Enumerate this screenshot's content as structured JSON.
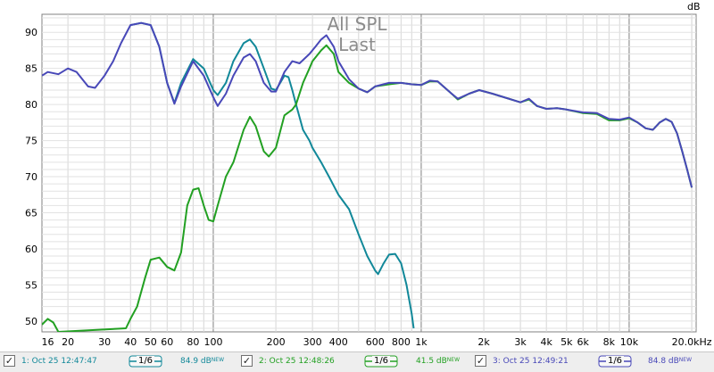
{
  "chart_data": {
    "type": "line",
    "title": "All SPL",
    "subtitle": "Last",
    "ylabel": "dB",
    "xscale": "log",
    "xlim": [
      15,
      21000
    ],
    "ylim": [
      48.5,
      92.5
    ],
    "yticks": [
      50,
      55,
      60,
      65,
      70,
      75,
      80,
      85,
      90
    ],
    "xtick_labels": [
      {
        "v": 16,
        "t": "16"
      },
      {
        "v": 20,
        "t": "20"
      },
      {
        "v": 30,
        "t": "30"
      },
      {
        "v": 40,
        "t": "40"
      },
      {
        "v": 50,
        "t": "50"
      },
      {
        "v": 60,
        "t": "60"
      },
      {
        "v": 80,
        "t": "80"
      },
      {
        "v": 100,
        "t": "100"
      },
      {
        "v": 200,
        "t": "200"
      },
      {
        "v": 300,
        "t": "300"
      },
      {
        "v": 400,
        "t": "400"
      },
      {
        "v": 600,
        "t": "600"
      },
      {
        "v": 800,
        "t": "800"
      },
      {
        "v": 1000,
        "t": "1k"
      },
      {
        "v": 2000,
        "t": "2k"
      },
      {
        "v": 3000,
        "t": "3k"
      },
      {
        "v": 4000,
        "t": "4k"
      },
      {
        "v": 5000,
        "t": "5k"
      },
      {
        "v": 6000,
        "t": "6k"
      },
      {
        "v": 8000,
        "t": "8k"
      },
      {
        "v": 10000,
        "t": "10k"
      },
      {
        "v": 20000,
        "t": "20.0kHz"
      }
    ],
    "grid": true,
    "series": [
      {
        "color": "#118899",
        "points": [
          [
            40,
            91.0
          ],
          [
            45,
            91.3
          ],
          [
            50,
            91.0
          ],
          [
            55,
            88
          ],
          [
            60,
            83
          ],
          [
            65,
            80.2
          ],
          [
            70,
            83
          ],
          [
            80,
            86.3
          ],
          [
            90,
            85
          ],
          [
            100,
            82
          ],
          [
            105,
            81.3
          ],
          [
            115,
            83
          ],
          [
            125,
            86
          ],
          [
            140,
            88.5
          ],
          [
            150,
            89
          ],
          [
            160,
            88
          ],
          [
            175,
            85
          ],
          [
            190,
            82.2
          ],
          [
            200,
            82
          ],
          [
            210,
            83
          ],
          [
            220,
            84
          ],
          [
            230,
            83.8
          ],
          [
            240,
            82
          ],
          [
            250,
            80
          ],
          [
            270,
            76.5
          ],
          [
            290,
            75
          ],
          [
            300,
            74
          ],
          [
            330,
            72
          ],
          [
            360,
            70
          ],
          [
            400,
            67.5
          ],
          [
            450,
            65.5
          ],
          [
            500,
            62
          ],
          [
            550,
            59
          ],
          [
            600,
            57
          ],
          [
            620,
            56.5
          ],
          [
            660,
            58
          ],
          [
            700,
            59.2
          ],
          [
            750,
            59.3
          ],
          [
            800,
            58
          ],
          [
            850,
            55
          ],
          [
            900,
            51
          ],
          [
            920,
            49
          ]
        ]
      },
      {
        "color": "#22a022",
        "points": [
          [
            15,
            49.5
          ],
          [
            16,
            50.3
          ],
          [
            17,
            49.8
          ],
          [
            18,
            48.5
          ],
          [
            38,
            49
          ],
          [
            40,
            50.3
          ],
          [
            43,
            52
          ],
          [
            47,
            56
          ],
          [
            50,
            58.5
          ],
          [
            55,
            58.8
          ],
          [
            60,
            57.5
          ],
          [
            65,
            57
          ],
          [
            70,
            59.5
          ],
          [
            75,
            66
          ],
          [
            80,
            68.2
          ],
          [
            85,
            68.4
          ],
          [
            90,
            66
          ],
          [
            95,
            64
          ],
          [
            100,
            63.8
          ],
          [
            105,
            66
          ],
          [
            115,
            70
          ],
          [
            125,
            72
          ],
          [
            140,
            76.5
          ],
          [
            150,
            78.3
          ],
          [
            160,
            77
          ],
          [
            175,
            73.5
          ],
          [
            185,
            72.8
          ],
          [
            200,
            74
          ],
          [
            220,
            78.5
          ],
          [
            240,
            79.3
          ],
          [
            250,
            80
          ],
          [
            270,
            83
          ],
          [
            290,
            85
          ],
          [
            300,
            86
          ],
          [
            330,
            87.5
          ],
          [
            350,
            88.2
          ],
          [
            380,
            87
          ],
          [
            400,
            84.5
          ],
          [
            450,
            83
          ],
          [
            500,
            82.2
          ],
          [
            550,
            81.7
          ],
          [
            600,
            82.5
          ],
          [
            700,
            82.8
          ],
          [
            800,
            83
          ],
          [
            900,
            82.8
          ],
          [
            1000,
            82.7
          ],
          [
            1100,
            83.2
          ],
          [
            1200,
            83.2
          ],
          [
            1400,
            81.5
          ],
          [
            1500,
            80.7
          ],
          [
            1700,
            81.5
          ],
          [
            1900,
            82
          ],
          [
            2200,
            81.5
          ],
          [
            2500,
            81
          ],
          [
            3000,
            80.3
          ],
          [
            3300,
            80.7
          ],
          [
            3600,
            79.8
          ],
          [
            4000,
            79.4
          ],
          [
            4500,
            79.5
          ],
          [
            5000,
            79.3
          ],
          [
            6000,
            78.8
          ],
          [
            7000,
            78.7
          ],
          [
            8000,
            77.8
          ],
          [
            9000,
            77.8
          ],
          [
            10000,
            78.1
          ],
          [
            11000,
            77.5
          ],
          [
            12000,
            76.7
          ],
          [
            13000,
            76.5
          ],
          [
            14000,
            77.5
          ],
          [
            15000,
            78
          ],
          [
            16000,
            77.6
          ],
          [
            17000,
            76
          ],
          [
            18000,
            73.5
          ],
          [
            19000,
            71
          ],
          [
            20000,
            68.5
          ]
        ]
      },
      {
        "color": "#4848b8",
        "points": [
          [
            15,
            84
          ],
          [
            16,
            84.5
          ],
          [
            18,
            84.2
          ],
          [
            20,
            85
          ],
          [
            22,
            84.5
          ],
          [
            25,
            82.5
          ],
          [
            27,
            82.3
          ],
          [
            30,
            84
          ],
          [
            33,
            86
          ],
          [
            36,
            88.5
          ],
          [
            40,
            91.0
          ],
          [
            45,
            91.3
          ],
          [
            50,
            91.0
          ],
          [
            55,
            88
          ],
          [
            60,
            83
          ],
          [
            65,
            80.1
          ],
          [
            70,
            82.5
          ],
          [
            80,
            86
          ],
          [
            90,
            84
          ],
          [
            100,
            81
          ],
          [
            105,
            79.8
          ],
          [
            115,
            81.5
          ],
          [
            125,
            84
          ],
          [
            140,
            86.5
          ],
          [
            150,
            87
          ],
          [
            160,
            86
          ],
          [
            175,
            83
          ],
          [
            190,
            81.8
          ],
          [
            200,
            81.8
          ],
          [
            220,
            84.5
          ],
          [
            240,
            86
          ],
          [
            260,
            85.7
          ],
          [
            290,
            87
          ],
          [
            310,
            88
          ],
          [
            330,
            89
          ],
          [
            350,
            89.6
          ],
          [
            380,
            88
          ],
          [
            400,
            86
          ],
          [
            450,
            83.5
          ],
          [
            500,
            82.2
          ],
          [
            550,
            81.7
          ],
          [
            600,
            82.5
          ],
          [
            700,
            83
          ],
          [
            800,
            83
          ],
          [
            900,
            82.8
          ],
          [
            1000,
            82.7
          ],
          [
            1100,
            83.3
          ],
          [
            1200,
            83.2
          ],
          [
            1400,
            81.5
          ],
          [
            1500,
            80.8
          ],
          [
            1700,
            81.5
          ],
          [
            1900,
            82
          ],
          [
            2200,
            81.5
          ],
          [
            2500,
            81
          ],
          [
            3000,
            80.3
          ],
          [
            3300,
            80.8
          ],
          [
            3600,
            79.8
          ],
          [
            4000,
            79.4
          ],
          [
            4500,
            79.5
          ],
          [
            5000,
            79.3
          ],
          [
            6000,
            78.9
          ],
          [
            7000,
            78.8
          ],
          [
            8000,
            78
          ],
          [
            9000,
            77.9
          ],
          [
            10000,
            78.2
          ],
          [
            11000,
            77.5
          ],
          [
            12000,
            76.7
          ],
          [
            13000,
            76.5
          ],
          [
            14000,
            77.5
          ],
          [
            15000,
            78
          ],
          [
            16000,
            77.6
          ],
          [
            17000,
            76
          ],
          [
            18000,
            73.5
          ],
          [
            19000,
            71
          ],
          [
            20000,
            68.5
          ]
        ]
      }
    ]
  },
  "legend": [
    {
      "label": "1: Oct 25 12:47:47",
      "smoothing": "1/6",
      "value": "84.9 dB",
      "badge": "NEW",
      "color": "#118899"
    },
    {
      "label": "2: Oct 25 12:48:26",
      "smoothing": "1/6",
      "value": "41.5 dB",
      "badge": "NEW",
      "color": "#22a022"
    },
    {
      "label": "3: Oct 25 12:49:21",
      "smoothing": "1/6",
      "value": "84.8 dB",
      "badge": "NEW",
      "color": "#4848b8"
    }
  ]
}
